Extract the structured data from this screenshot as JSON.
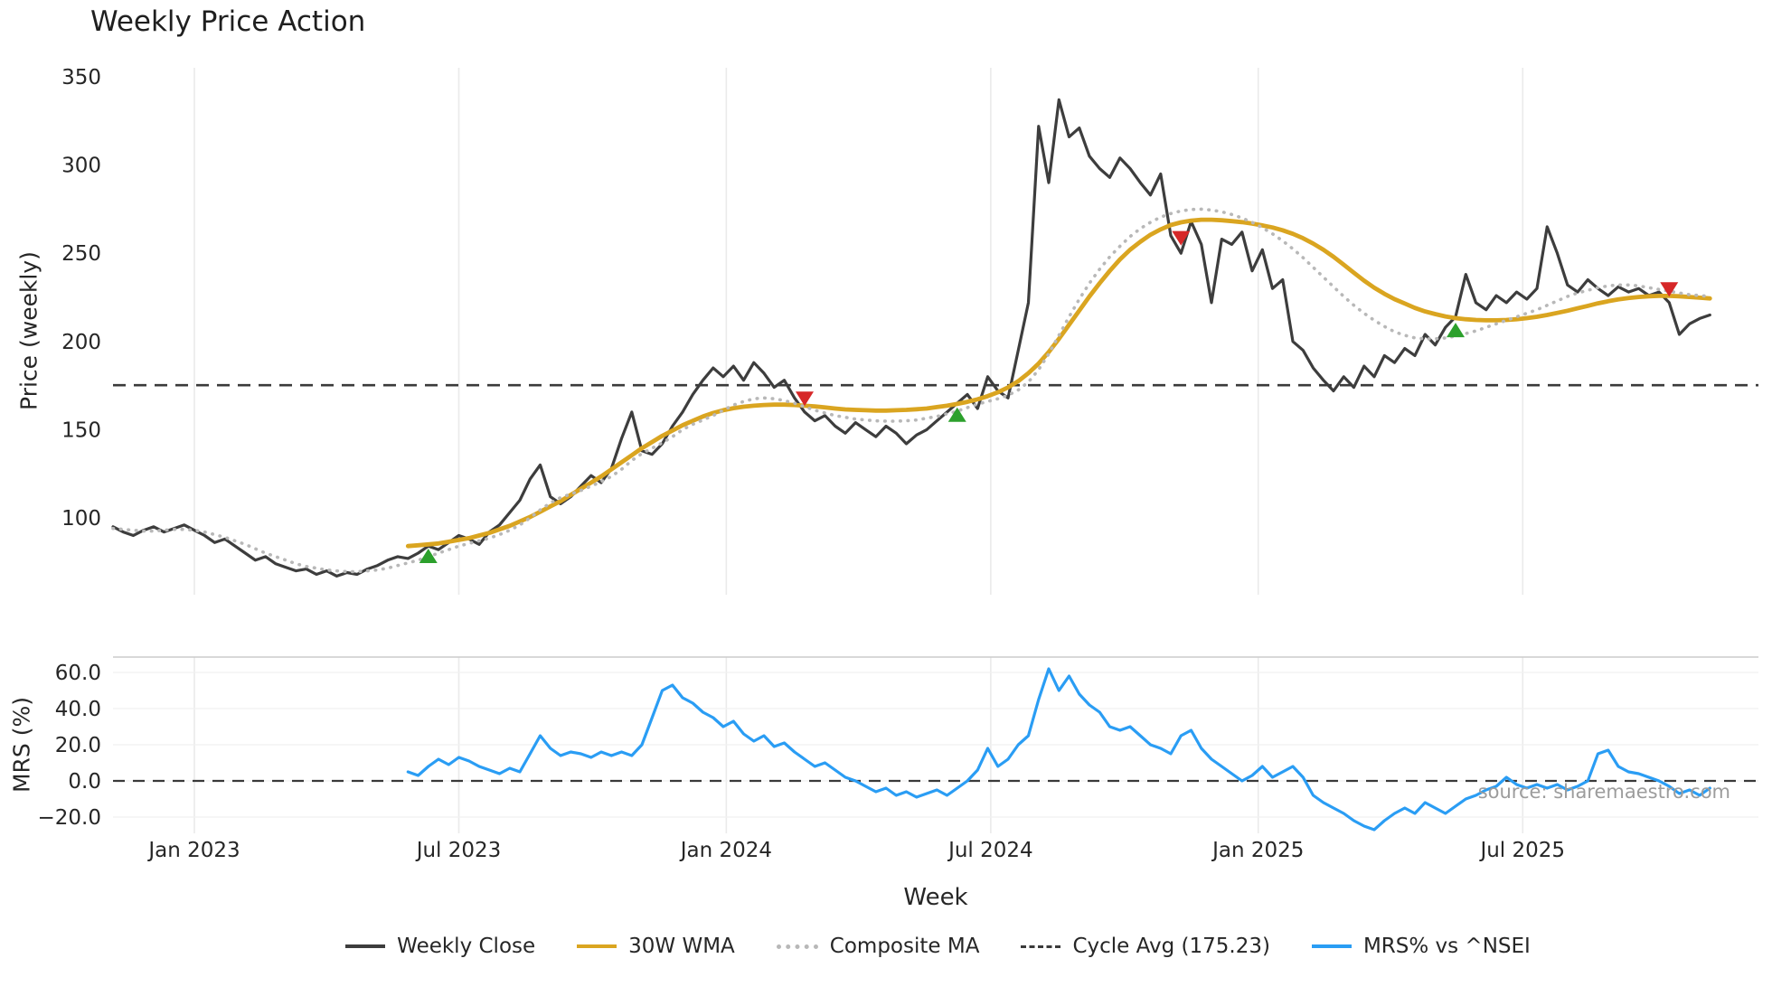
{
  "title": "Weekly Price Action",
  "source_note": "source: sharemaestro.com",
  "axes": {
    "price_ylabel": "Price (weekly)",
    "mrs_ylabel": "MRS (%)",
    "xlabel": "Week"
  },
  "legend": [
    {
      "label": "Weekly Close",
      "type": "solid",
      "color": "#3d3d3d"
    },
    {
      "label": "30W WMA",
      "type": "solid",
      "color": "#DAA520"
    },
    {
      "label": "Composite MA",
      "type": "dotted",
      "color": "#b8b8b8"
    },
    {
      "label": "Cycle Avg (175.23)",
      "type": "dashed",
      "color": "#3a3a3a"
    },
    {
      "label": "MRS% vs ^NSEI",
      "type": "solid",
      "color": "#2a9df4"
    }
  ],
  "chart_data": {
    "type": "line",
    "x_unit": "week_index",
    "x_ticks": [
      {
        "week": 8,
        "label": "Jan 2023"
      },
      {
        "week": 34,
        "label": "Jul 2023"
      },
      {
        "week": 60.3,
        "label": "Jan 2024"
      },
      {
        "week": 86.3,
        "label": "Jul 2024"
      },
      {
        "week": 112.6,
        "label": "Jan 2025"
      },
      {
        "week": 138.6,
        "label": "Jul 2025"
      }
    ],
    "price_panel": {
      "ylabel": "Price (weekly)",
      "yticks": [
        100,
        150,
        200,
        250,
        300,
        350
      ],
      "ylim": [
        55,
        355
      ],
      "cycle_avg": 175.23,
      "grid": "vertical",
      "series": [
        {
          "name": "Weekly Close",
          "color": "#3d3d3d",
          "style": "solid",
          "start_week": 0,
          "values": [
            95,
            92,
            90,
            93,
            95,
            92,
            94,
            96,
            93,
            90,
            86,
            88,
            84,
            80,
            76,
            78,
            74,
            72,
            70,
            71,
            68,
            70,
            67,
            69,
            68,
            71,
            73,
            76,
            78,
            77,
            80,
            84,
            82,
            86,
            90,
            88,
            85,
            92,
            96,
            103,
            110,
            122,
            130,
            112,
            108,
            112,
            118,
            124,
            120,
            128,
            145,
            160,
            138,
            136,
            142,
            152,
            160,
            170,
            178,
            185,
            180,
            186,
            178,
            188,
            182,
            174,
            178,
            168,
            160,
            155,
            158,
            152,
            148,
            154,
            150,
            146,
            152,
            148,
            142,
            147,
            150,
            155,
            160,
            165,
            170,
            162,
            180,
            172,
            168,
            195,
            222,
            322,
            290,
            337,
            316,
            321,
            305,
            298,
            293,
            304,
            298,
            290,
            283,
            295,
            260,
            250,
            268,
            255,
            222,
            258,
            255,
            262,
            240,
            252,
            230,
            235,
            200,
            195,
            185,
            178,
            172,
            180,
            174,
            186,
            180,
            192,
            188,
            196,
            192,
            204,
            198,
            208,
            214,
            238,
            222,
            218,
            226,
            222,
            228,
            224,
            230,
            265,
            250,
            232,
            228,
            235,
            230,
            226,
            231,
            228,
            230,
            226,
            228,
            222,
            204,
            210,
            213,
            215
          ]
        },
        {
          "name": "30W WMA",
          "color": "#DAA520",
          "style": "solid",
          "start_week": 29,
          "values": [
            84,
            84.5,
            85,
            85.5,
            86.5,
            87.5,
            88.5,
            90,
            91.5,
            93.5,
            95.5,
            98,
            100.5,
            103.5,
            106.5,
            109.5,
            113,
            116.5,
            120,
            123.5,
            127.5,
            131.5,
            135.5,
            139.5,
            143,
            146.5,
            149.5,
            152.5,
            155,
            157.5,
            159.5,
            161,
            162.2,
            163,
            163.6,
            164,
            164.2,
            164.2,
            164,
            163.6,
            163.2,
            162.6,
            162,
            161.5,
            161.2,
            161,
            160.8,
            160.8,
            161,
            161.2,
            161.6,
            162,
            162.8,
            163.6,
            164.6,
            165.8,
            167.2,
            169,
            171.2,
            174,
            177.5,
            182,
            187.5,
            194,
            201.5,
            209.5,
            217.5,
            225.5,
            233,
            240,
            246.5,
            252,
            256.5,
            260.5,
            263.5,
            266,
            267.5,
            268.5,
            269,
            269,
            268.7,
            268.2,
            267.6,
            266.8,
            265.8,
            264.6,
            263,
            261,
            258.5,
            255.5,
            252,
            248,
            243.5,
            239,
            234.5,
            230.5,
            227,
            224,
            221.5,
            219,
            217,
            215.5,
            214.2,
            213.2,
            212.6,
            212.2,
            212,
            212,
            212.2,
            212.6,
            213.2,
            214,
            215,
            216.2,
            217.4,
            218.8,
            220.2,
            221.6,
            222.8,
            223.8,
            224.6,
            225.2,
            225.6,
            225.8,
            225.8,
            225.6,
            225.2,
            224.8,
            224.4
          ]
        },
        {
          "name": "Composite MA",
          "color": "#b8b8b8",
          "style": "dotted",
          "start_week": 0,
          "values": [
            94,
            93.5,
            93,
            92.5,
            92.5,
            93,
            93.5,
            93.5,
            93,
            92,
            90.5,
            89,
            87,
            85,
            82.5,
            80,
            78,
            76,
            74,
            72.5,
            71.5,
            70.5,
            70,
            69.5,
            69.5,
            70,
            70.5,
            71.5,
            73,
            74.5,
            76,
            78,
            80,
            82,
            84,
            85.5,
            87,
            88.5,
            90.5,
            93,
            96,
            100,
            104.5,
            108.5,
            111.5,
            113.5,
            115.5,
            118,
            120.5,
            123.5,
            127.5,
            132.5,
            136.5,
            139.5,
            142.5,
            146,
            150,
            153,
            155.5,
            158,
            161,
            164,
            166,
            167.5,
            168,
            167.5,
            166.5,
            165,
            163,
            161,
            159.5,
            158,
            157,
            156,
            155.5,
            155,
            154.8,
            154.8,
            155,
            155.5,
            156.5,
            157.5,
            159,
            160.5,
            162.5,
            164.5,
            166,
            167.5,
            169.5,
            172.5,
            177,
            184,
            193,
            203.5,
            214,
            224,
            233,
            241,
            248,
            254,
            259.5,
            264,
            267.5,
            270.5,
            272.5,
            274,
            274.8,
            275,
            274.5,
            273.5,
            272,
            270,
            267.5,
            264.5,
            261,
            257,
            252.5,
            247.5,
            242,
            236.5,
            231,
            225.5,
            220.5,
            216,
            212,
            208.5,
            205.5,
            203.5,
            202,
            201.5,
            201.5,
            202,
            203,
            204.5,
            206,
            208,
            210,
            212,
            214,
            216,
            218,
            220.5,
            223,
            225.5,
            227.5,
            229,
            230.5,
            231.5,
            232,
            232,
            231.5,
            230.5,
            229.5,
            228.5,
            227.5,
            226.5,
            226,
            225.5
          ]
        }
      ],
      "markers": {
        "buy_symbol": "triangle-up",
        "sell_symbol": "triangle-down",
        "buy_color": "#2ca02c",
        "sell_color": "#d62728",
        "buys": [
          {
            "week": 31,
            "price": 78
          },
          {
            "week": 83,
            "price": 158
          },
          {
            "week": 132,
            "price": 206
          }
        ],
        "sells": [
          {
            "week": 68,
            "price": 168
          },
          {
            "week": 105,
            "price": 259
          },
          {
            "week": 153,
            "price": 230
          }
        ]
      }
    },
    "mrs_panel": {
      "ylabel": "MRS (%)",
      "yticks": [
        -20,
        0,
        20,
        40,
        60
      ],
      "ytick_labels": [
        "−20.0",
        "0.0",
        "20.0",
        "40.0",
        "60.0"
      ],
      "ylim": [
        -29,
        68
      ],
      "zero_line": 0,
      "series": [
        {
          "name": "MRS% vs ^NSEI",
          "color": "#2a9df4",
          "style": "solid",
          "start_week": 29,
          "values": [
            5,
            3,
            8,
            12,
            9,
            13,
            11,
            8,
            6,
            4,
            7,
            5,
            15,
            25,
            18,
            14,
            16,
            15,
            13,
            16,
            14,
            16,
            14,
            20,
            35,
            50,
            53,
            46,
            43,
            38,
            35,
            30,
            33,
            26,
            22,
            25,
            19,
            21,
            16,
            12,
            8,
            10,
            6,
            2,
            0,
            -3,
            -6,
            -4,
            -8,
            -6,
            -9,
            -7,
            -5,
            -8,
            -4,
            0,
            6,
            18,
            8,
            12,
            20,
            25,
            45,
            62,
            50,
            58,
            48,
            42,
            38,
            30,
            28,
            30,
            25,
            20,
            18,
            15,
            25,
            28,
            18,
            12,
            8,
            4,
            0,
            3,
            8,
            2,
            5,
            8,
            2,
            -8,
            -12,
            -15,
            -18,
            -22,
            -25,
            -27,
            -22,
            -18,
            -15,
            -18,
            -12,
            -15,
            -18,
            -14,
            -10,
            -8,
            -5,
            -3,
            2,
            -2,
            -4,
            -2,
            -4,
            -2,
            -5,
            -3,
            0,
            15,
            17,
            8,
            5,
            4,
            2,
            0,
            -3,
            -7,
            -5,
            -8,
            -4
          ]
        }
      ]
    }
  }
}
